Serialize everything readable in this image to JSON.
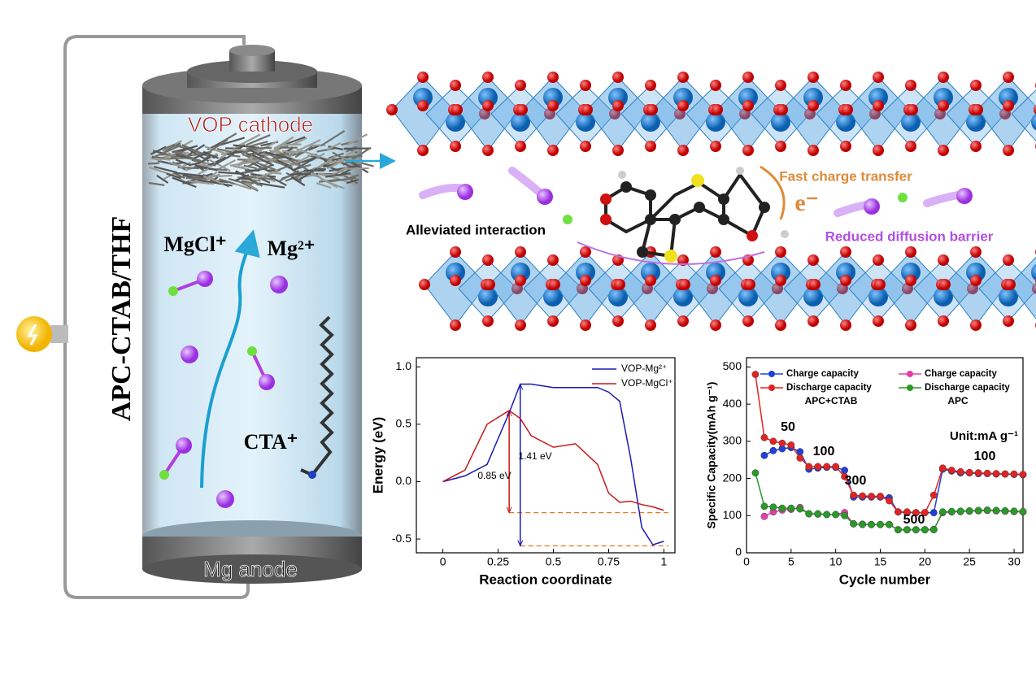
{
  "labels": {
    "cathode": "VOP cathode",
    "electrolyte": "APC-CTAB/THF",
    "mgcl": "MgCl⁺",
    "mg": "Mg²⁺",
    "cta": "CTA⁺",
    "anode": "Mg anode",
    "alleviated": "Alleviated interaction",
    "fast": "Fast charge transfer",
    "electron": "e⁻",
    "reduced": "Reduced diffusion barrier"
  },
  "chart_data": [
    {
      "type": "line",
      "xlabel": "Reaction coordinate",
      "ylabel": "Energy (eV)",
      "xlim": [
        -0.12,
        1.05
      ],
      "ylim": [
        -0.62,
        1.08
      ],
      "xticks": [
        0,
        0.25,
        0.5,
        0.75,
        1
      ],
      "yticks": [
        -0.5,
        {
          "value": 0,
          "label": "0.0"
        },
        0.5,
        {
          "value": 1,
          "label": "1.0"
        }
      ],
      "x": [
        0,
        0.1,
        0.2,
        0.3,
        0.35,
        0.4,
        0.5,
        0.6,
        0.7,
        0.75,
        0.8,
        0.85,
        0.9,
        0.95,
        1
      ],
      "series": [
        {
          "name": "VOP-Mg²⁺",
          "color": "#1a1ab4",
          "values": [
            0,
            0.05,
            0.15,
            0.6,
            0.85,
            0.85,
            0.82,
            0.82,
            0.82,
            0.78,
            0.7,
            0.2,
            -0.4,
            -0.55,
            -0.52
          ]
        },
        {
          "name": "VOP-MgCl⁺",
          "color": "#c81818",
          "values": [
            0,
            0.1,
            0.5,
            0.62,
            0.55,
            0.4,
            0.3,
            0.33,
            0.15,
            -0.1,
            -0.18,
            -0.17,
            -0.2,
            -0.22,
            -0.25
          ]
        }
      ],
      "reference_lines": [
        -0.27,
        -0.56
      ],
      "reference_color": "#e07a20",
      "annotations": [
        "0.85 eV",
        "1.41 eV"
      ],
      "legend": "upper right"
    },
    {
      "type": "line",
      "markers": true,
      "xlabel": "Cycle number",
      "ylabel": "Specific Capacity(mAh g⁻¹)",
      "xlim": [
        0,
        31
      ],
      "ylim": [
        0,
        525
      ],
      "xticks": [
        0,
        5,
        10,
        15,
        20,
        25,
        30
      ],
      "yticks": [
        0,
        100,
        200,
        300,
        400,
        500
      ],
      "x": [
        1,
        2,
        3,
        4,
        5,
        6,
        7,
        8,
        9,
        10,
        11,
        12,
        13,
        14,
        15,
        16,
        17,
        18,
        19,
        20,
        21,
        22,
        23,
        24,
        25,
        26,
        27,
        28,
        29,
        30,
        31
      ],
      "series": [
        {
          "name": "Charge capacity",
          "color": "#2040d8",
          "values": [
            null,
            262,
            275,
            280,
            283,
            272,
            225,
            228,
            230,
            230,
            222,
            150,
            150,
            150,
            150,
            148,
            110,
            108,
            108,
            108,
            108,
            225,
            220,
            215,
            215,
            213,
            213,
            212,
            212,
            211,
            210
          ]
        },
        {
          "name": "Discharge capacity",
          "color": "#e02424",
          "values": [
            480,
            310,
            300,
            295,
            290,
            255,
            232,
            232,
            232,
            232,
            205,
            155,
            153,
            152,
            152,
            140,
            110,
            110,
            108,
            108,
            155,
            228,
            222,
            218,
            216,
            215,
            214,
            213,
            212,
            212,
            211
          ]
        },
        {
          "name": "Charge capacity",
          "color": "#e040a8",
          "values": [
            null,
            98,
            110,
            115,
            117,
            122,
            105,
            104,
            103,
            103,
            108,
            78,
            77,
            76,
            76,
            76,
            62,
            62,
            62,
            62,
            63,
            108,
            110,
            111,
            112,
            113,
            114,
            113,
            112,
            111,
            110
          ]
        },
        {
          "name": "Discharge capacity",
          "color": "#2a9a2a",
          "values": [
            215,
            125,
            123,
            120,
            120,
            118,
            105,
            105,
            103,
            103,
            100,
            78,
            76,
            76,
            76,
            76,
            62,
            62,
            62,
            62,
            62,
            110,
            111,
            112,
            113,
            114,
            115,
            114,
            113,
            112,
            111
          ]
        }
      ],
      "legend_groups": [
        "APC+CTAB",
        "APC"
      ],
      "annotations": [
        "50",
        "100",
        "300",
        "500",
        "100",
        "Unit:mA g⁻¹"
      ],
      "legend": "upper center"
    }
  ]
}
